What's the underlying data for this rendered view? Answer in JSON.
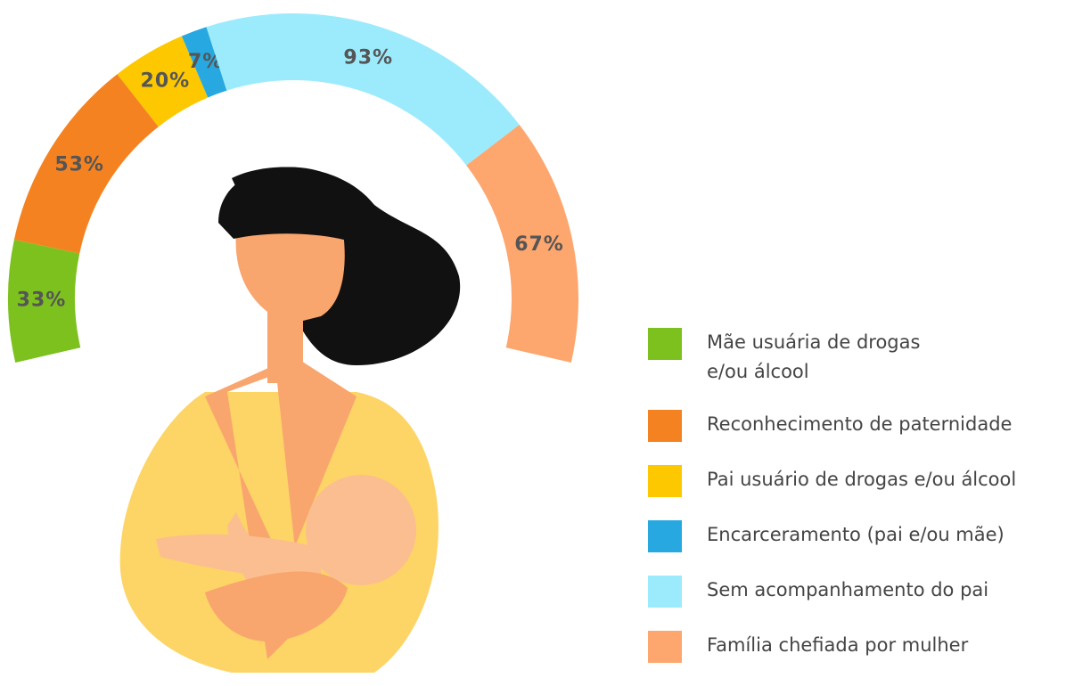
{
  "chart_data": {
    "type": "arc",
    "categories": [
      "Mãe usuária de drogas\ne/ou álcool",
      "Reconhecimento de paternidade",
      "Pai usuário de drogas e/ou álcool",
      "Encarceramento (pai e/ou mãe)",
      "Sem acompanhamento do pai",
      "Família chefiada por mulher"
    ],
    "values": [
      33,
      53,
      20,
      7,
      93,
      67
    ],
    "value_labels": [
      "33%",
      "53%",
      "20%",
      "7%",
      "93%",
      "67%"
    ],
    "colors": [
      "#7DC11F",
      "#F58220",
      "#FDC800",
      "#27A8E0",
      "#9CEBFD",
      "#FDA66E"
    ]
  }
}
